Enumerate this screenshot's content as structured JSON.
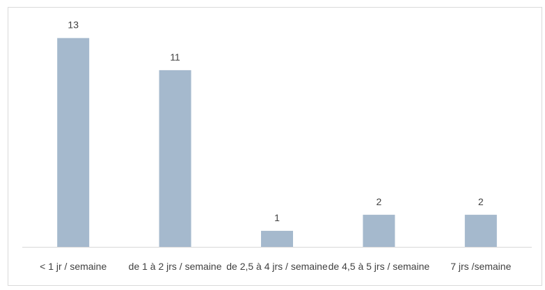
{
  "chart_data": {
    "type": "bar",
    "categories": [
      "< 1 jr / semaine",
      "de 1 à 2 jrs / semaine",
      "de 2,5 à 4 jrs / semaine",
      "de 4,5 à 5 jrs / semaine",
      "7 jrs /semaine"
    ],
    "values": [
      13,
      11,
      1,
      2,
      2
    ],
    "data_labels": [
      "13",
      "11",
      "1",
      "2",
      "2"
    ],
    "title": "",
    "xlabel": "",
    "ylabel": "",
    "ylim": [
      0,
      14
    ],
    "grid": false,
    "legend": "none",
    "bar_color": "#a5b9cd",
    "axis_color": "#d9d9d9",
    "text_color": "#404040"
  }
}
